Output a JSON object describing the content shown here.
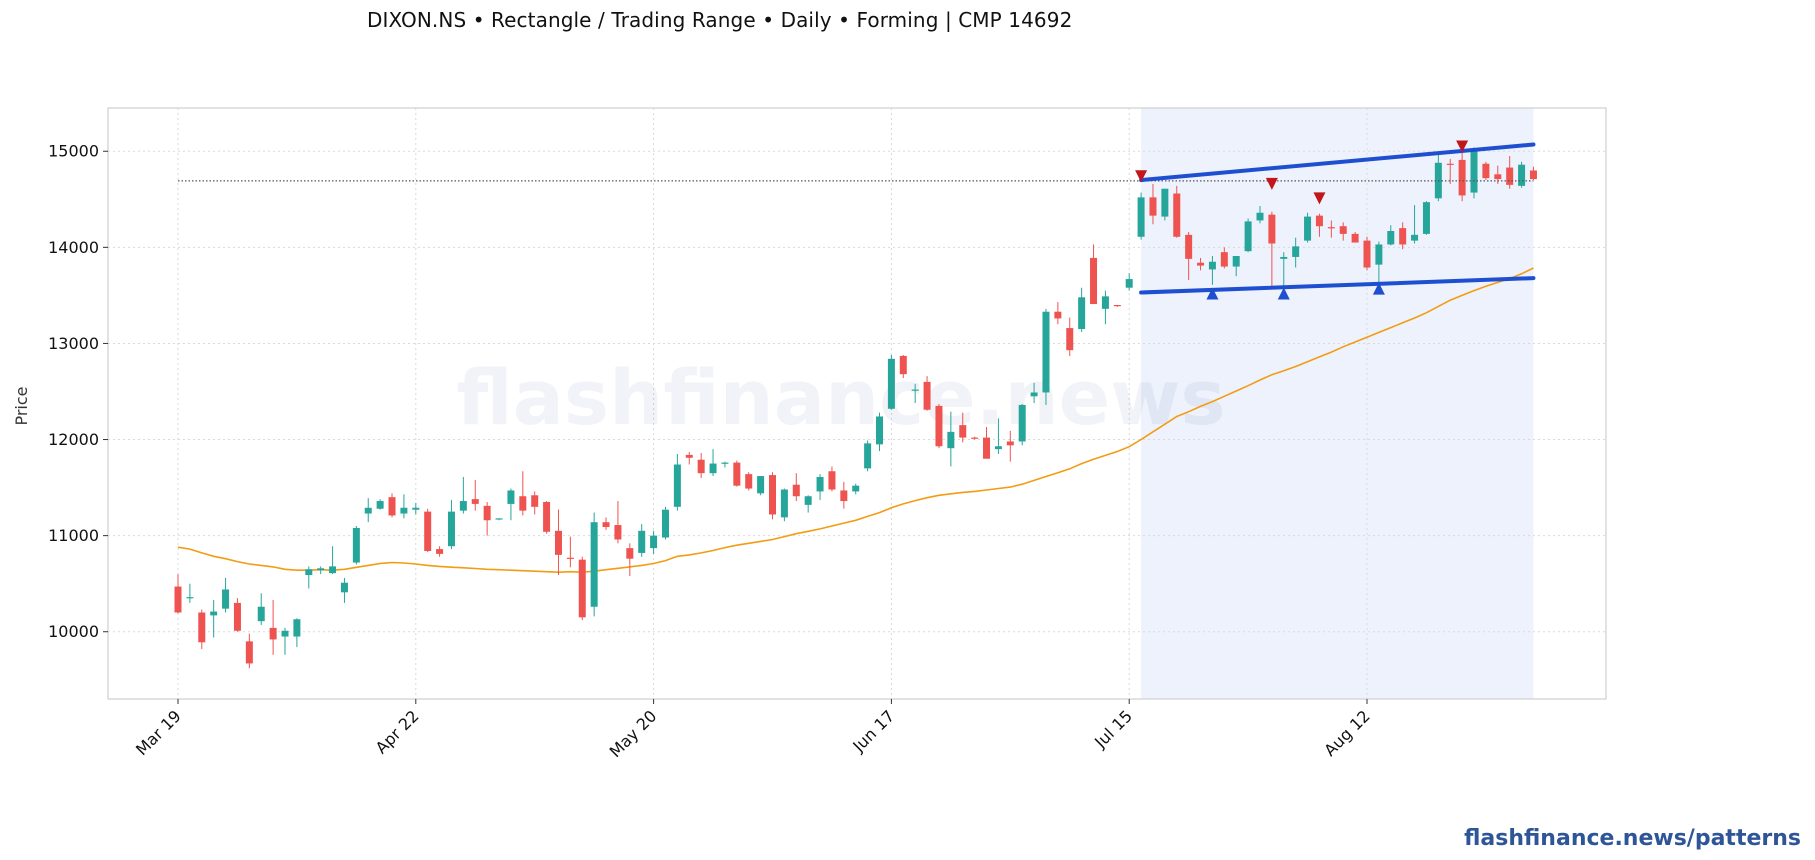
{
  "title": "DIXON.NS  •  Rectangle / Trading Range  •  Daily  •  Forming  |  CMP 14692",
  "footer": "flashfinance.news/patterns",
  "watermark": "flashfinance.news",
  "colors": {
    "up": "#26a69a",
    "down": "#ef5350",
    "ma": "#f39c12",
    "channel": "#1f4fd1",
    "resistance_marker": "#c0161c",
    "support_marker": "#1f4fd1",
    "pattern_zone": "#e8edfb",
    "cmp_line": "#555555"
  },
  "chart_data": {
    "type": "candlestick",
    "ylabel": "Price",
    "xlabel": "",
    "ylim": [
      9300,
      15450
    ],
    "yticks": [
      10000,
      11000,
      12000,
      13000,
      14000,
      15000
    ],
    "xticks": [
      {
        "label": "Mar 19",
        "index": 0
      },
      {
        "label": "Apr 22",
        "index": 20
      },
      {
        "label": "May 20",
        "index": 40
      },
      {
        "label": "Jun 17",
        "index": 60
      },
      {
        "label": "Jul 15",
        "index": 80
      },
      {
        "label": "Aug 12",
        "index": 100
      }
    ],
    "grid": true,
    "cmp": 14692,
    "pattern_zone": {
      "start_index": 81,
      "end_index": 114
    },
    "channel_upper": {
      "start": {
        "index": 81,
        "value": 14700
      },
      "end": {
        "index": 114,
        "value": 15070
      }
    },
    "channel_lower": {
      "start": {
        "index": 81,
        "value": 13530
      },
      "end": {
        "index": 114,
        "value": 13680
      }
    },
    "resistance_touches": [
      {
        "index": 81,
        "value": 14740
      },
      {
        "index": 92,
        "value": 14660
      },
      {
        "index": 96,
        "value": 14510
      },
      {
        "index": 108,
        "value": 15050
      }
    ],
    "support_touches": [
      {
        "index": 87,
        "value": 13520
      },
      {
        "index": 93,
        "value": 13520
      },
      {
        "index": 101,
        "value": 13570
      }
    ],
    "ohlc": [
      [
        10470,
        10600,
        10190,
        10200
      ],
      [
        10350,
        10500,
        10300,
        10360
      ],
      [
        10200,
        10230,
        9820,
        9890
      ],
      [
        10170,
        10330,
        9940,
        10210
      ],
      [
        10240,
        10560,
        10200,
        10440
      ],
      [
        10300,
        10350,
        10000,
        10010
      ],
      [
        9900,
        9980,
        9620,
        9670
      ],
      [
        10110,
        10400,
        10070,
        10260
      ],
      [
        10040,
        10330,
        9760,
        9920
      ],
      [
        9950,
        10040,
        9760,
        10010
      ],
      [
        9950,
        10140,
        9840,
        10130
      ],
      [
        10590,
        10680,
        10450,
        10650
      ],
      [
        10640,
        10680,
        10600,
        10660
      ],
      [
        10610,
        10890,
        10600,
        10680
      ],
      [
        10410,
        10560,
        10300,
        10510
      ],
      [
        10720,
        11100,
        10700,
        11080
      ],
      [
        11230,
        11390,
        11140,
        11290
      ],
      [
        11280,
        11380,
        11270,
        11360
      ],
      [
        11400,
        11440,
        11190,
        11210
      ],
      [
        11230,
        11430,
        11180,
        11290
      ],
      [
        11270,
        11340,
        11220,
        11290
      ],
      [
        11250,
        11280,
        10830,
        10840
      ],
      [
        10860,
        10890,
        10780,
        10810
      ],
      [
        10890,
        11370,
        10860,
        11250
      ],
      [
        11260,
        11610,
        11230,
        11360
      ],
      [
        11380,
        11580,
        11260,
        11330
      ],
      [
        11310,
        11350,
        11000,
        11160
      ],
      [
        11180,
        11180,
        11160,
        11180
      ],
      [
        11330,
        11490,
        11160,
        11470
      ],
      [
        11410,
        11670,
        11210,
        11260
      ],
      [
        11420,
        11460,
        11220,
        11300
      ],
      [
        11350,
        11360,
        11020,
        11040
      ],
      [
        11050,
        11270,
        10590,
        10800
      ],
      [
        10770,
        10990,
        10670,
        10760
      ],
      [
        10750,
        10780,
        10120,
        10150
      ],
      [
        10260,
        11240,
        10160,
        11140
      ],
      [
        11140,
        11190,
        11060,
        11090
      ],
      [
        11110,
        11360,
        10920,
        10960
      ],
      [
        10870,
        10920,
        10580,
        10760
      ],
      [
        10820,
        11120,
        10780,
        11050
      ],
      [
        10870,
        11050,
        10810,
        11000
      ],
      [
        10980,
        11300,
        10960,
        11270
      ],
      [
        11300,
        11850,
        11260,
        11740
      ],
      [
        11840,
        11870,
        11740,
        11810
      ],
      [
        11790,
        11860,
        11600,
        11650
      ],
      [
        11650,
        11900,
        11620,
        11750
      ],
      [
        11760,
        11770,
        11710,
        11760
      ],
      [
        11760,
        11780,
        11510,
        11520
      ],
      [
        11640,
        11660,
        11470,
        11490
      ],
      [
        11440,
        11620,
        11420,
        11620
      ],
      [
        11630,
        11660,
        11170,
        11220
      ],
      [
        11190,
        11490,
        11150,
        11480
      ],
      [
        11530,
        11650,
        11360,
        11410
      ],
      [
        11320,
        11420,
        11240,
        11410
      ],
      [
        11460,
        11640,
        11370,
        11610
      ],
      [
        11670,
        11720,
        11460,
        11480
      ],
      [
        11470,
        11560,
        11280,
        11360
      ],
      [
        11460,
        11540,
        11430,
        11520
      ],
      [
        11700,
        11990,
        11670,
        11960
      ],
      [
        11950,
        12280,
        11880,
        12240
      ],
      [
        12320,
        12880,
        12310,
        12840
      ],
      [
        12870,
        12880,
        12640,
        12680
      ],
      [
        12520,
        12580,
        12380,
        12520
      ],
      [
        12600,
        12660,
        12300,
        12310
      ],
      [
        12350,
        12370,
        11910,
        11930
      ],
      [
        11910,
        12290,
        11720,
        12080
      ],
      [
        12150,
        12280,
        11970,
        12020
      ],
      [
        12020,
        12030,
        12000,
        12010
      ],
      [
        12020,
        12130,
        11810,
        11800
      ],
      [
        11900,
        12220,
        11850,
        11930
      ],
      [
        11980,
        12090,
        11770,
        11940
      ],
      [
        11980,
        12370,
        11940,
        12360
      ],
      [
        12450,
        12590,
        12380,
        12490
      ],
      [
        12490,
        13360,
        12360,
        13330
      ],
      [
        13330,
        13430,
        13200,
        13260
      ],
      [
        13160,
        13270,
        12870,
        12930
      ],
      [
        13150,
        13580,
        13120,
        13480
      ],
      [
        13890,
        14030,
        13410,
        13410
      ],
      [
        13360,
        13550,
        13200,
        13490
      ],
      [
        13400,
        13400,
        13380,
        13390
      ],
      [
        13580,
        13730,
        13550,
        13670
      ],
      [
        14110,
        14570,
        14080,
        14520
      ],
      [
        14520,
        14660,
        14240,
        14330
      ],
      [
        14320,
        14590,
        14280,
        14610
      ],
      [
        14560,
        14640,
        14100,
        14110
      ],
      [
        14130,
        14160,
        13660,
        13880
      ],
      [
        13840,
        13890,
        13760,
        13810
      ],
      [
        13770,
        13910,
        13610,
        13850
      ],
      [
        13950,
        14000,
        13780,
        13800
      ],
      [
        13800,
        13910,
        13700,
        13910
      ],
      [
        13960,
        14300,
        13950,
        14270
      ],
      [
        14280,
        14430,
        14250,
        14360
      ],
      [
        14340,
        14370,
        13590,
        14040
      ],
      [
        13880,
        13950,
        13550,
        13900
      ],
      [
        13900,
        14100,
        13790,
        14010
      ],
      [
        14070,
        14360,
        14050,
        14320
      ],
      [
        14330,
        14350,
        14110,
        14220
      ],
      [
        14210,
        14280,
        14100,
        14200
      ],
      [
        14220,
        14260,
        14070,
        14140
      ],
      [
        14140,
        14160,
        14050,
        14050
      ],
      [
        14070,
        14110,
        13760,
        13790
      ],
      [
        13820,
        14060,
        13640,
        14030
      ],
      [
        14030,
        14230,
        14020,
        14170
      ],
      [
        14200,
        14260,
        13980,
        14030
      ],
      [
        14070,
        14440,
        14040,
        14130
      ],
      [
        14140,
        14480,
        14130,
        14470
      ],
      [
        14510,
        14980,
        14480,
        14880
      ],
      [
        14870,
        14920,
        14660,
        14860
      ],
      [
        14910,
        15100,
        14480,
        14540
      ],
      [
        14570,
        15040,
        14510,
        15010
      ],
      [
        14870,
        14890,
        14700,
        14720
      ],
      [
        14760,
        14850,
        14660,
        14710
      ],
      [
        14830,
        14950,
        14610,
        14650
      ],
      [
        14640,
        14890,
        14620,
        14860
      ],
      [
        14800,
        14840,
        14700,
        14710
      ]
    ],
    "ma_line": [
      10880,
      10860,
      10820,
      10785,
      10760,
      10730,
      10705,
      10690,
      10675,
      10650,
      10640,
      10640,
      10645,
      10640,
      10650,
      10670,
      10690,
      10710,
      10720,
      10715,
      10705,
      10690,
      10680,
      10672,
      10665,
      10658,
      10650,
      10645,
      10640,
      10635,
      10630,
      10625,
      10620,
      10625,
      10620,
      10630,
      10645,
      10660,
      10675,
      10690,
      10710,
      10740,
      10785,
      10800,
      10820,
      10845,
      10875,
      10900,
      10920,
      10940,
      10960,
      10990,
      11020,
      11045,
      11070,
      11100,
      11130,
      11160,
      11200,
      11240,
      11290,
      11330,
      11365,
      11395,
      11420,
      11435,
      11450,
      11460,
      11475,
      11490,
      11505,
      11535,
      11575,
      11615,
      11655,
      11695,
      11750,
      11795,
      11835,
      11875,
      11925,
      12000,
      12080,
      12160,
      12240,
      12290,
      12345,
      12395,
      12450,
      12505,
      12560,
      12620,
      12675,
      12715,
      12760,
      12810,
      12860,
      12910,
      12965,
      13015,
      13065,
      13115,
      13165,
      13215,
      13265,
      13320,
      13385,
      13450,
      13500,
      13550,
      13595,
      13635,
      13675,
      13725,
      13785
    ]
  }
}
